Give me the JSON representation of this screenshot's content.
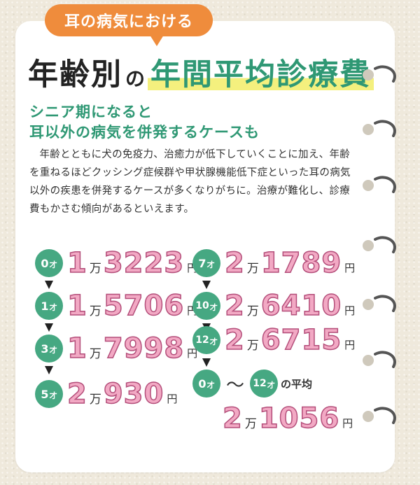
{
  "tag_label": "耳の病気における",
  "title": {
    "part1": "年齢別",
    "particle": "の",
    "highlight": "年間平均診療費"
  },
  "subheading": {
    "line1": "シニア期になると",
    "line2": "耳以外の病気を併発するケースも"
  },
  "body": "年齢とともに犬の免疫力、治癒力が低下していくことに加え、年齢を重ねるほどクッシング症候群や甲状腺機能低下症といった耳の病気以外の疾患を併発するケースが多くなりがちに。治療が難化し、診療費もかさむ傾向があるといえます。",
  "units": {
    "sai": "才",
    "man": "万",
    "yen": "円"
  },
  "costs_left": [
    {
      "age": "0",
      "man": "1",
      "rest": "3223"
    },
    {
      "age": "1",
      "man": "1",
      "rest": "5706"
    },
    {
      "age": "3",
      "man": "1",
      "rest": "7998"
    },
    {
      "age": "5",
      "man": "2",
      "rest": "930"
    }
  ],
  "costs_right": [
    {
      "age": "7",
      "man": "2",
      "rest": "1789"
    },
    {
      "age": "10",
      "man": "2",
      "rest": "6410"
    },
    {
      "age": "12",
      "man": "2",
      "rest": "6715"
    }
  ],
  "average": {
    "from_age": "0",
    "tilde": "〜",
    "to_age": "12",
    "label": "の平均",
    "man": "2",
    "rest": "1056"
  },
  "colors": {
    "accent_orange": "#ef8c3c",
    "accent_green": "#2f9874",
    "badge_green": "#46a882",
    "number_pink": "#f2a9c4",
    "highlight_yellow": "#f4f07e"
  }
}
